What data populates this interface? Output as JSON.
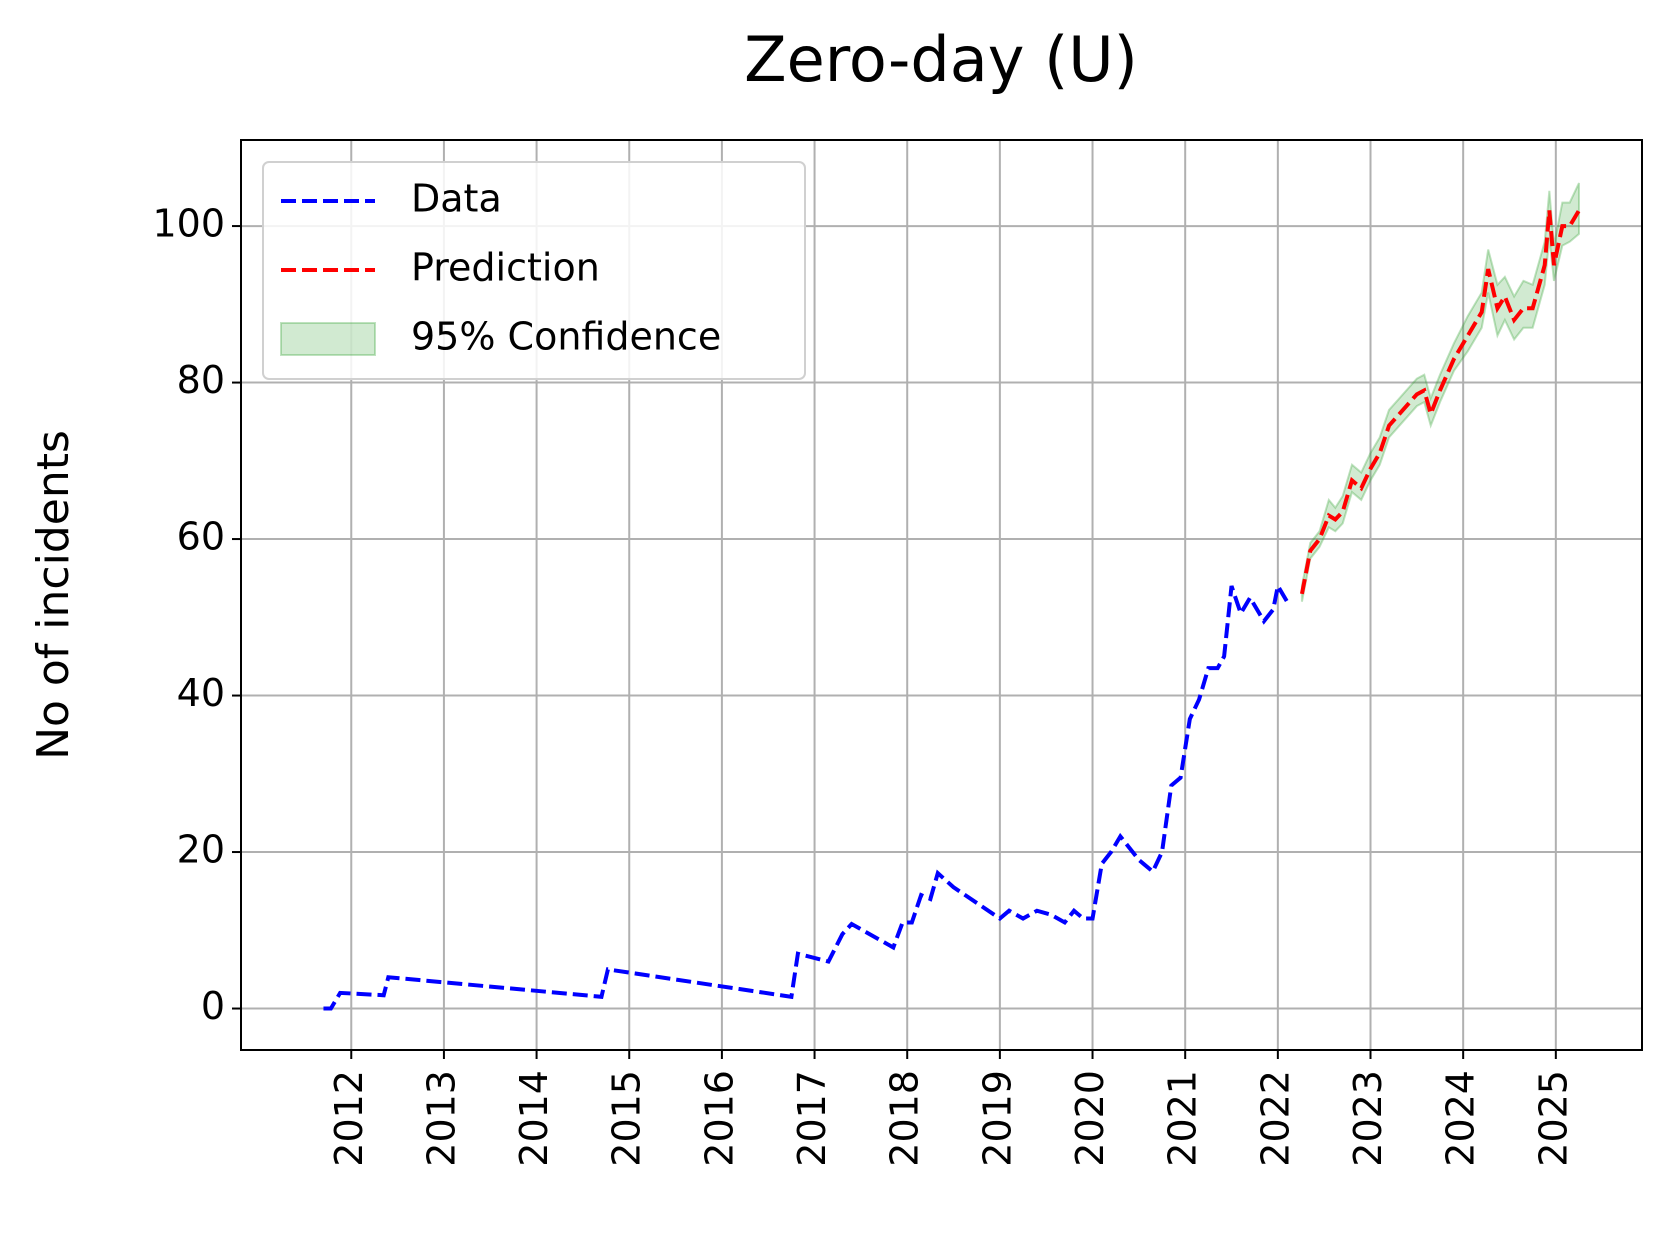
{
  "chart_data": {
    "type": "line",
    "title": "Zero-day (U)",
    "y_label": "No of incidents",
    "xlim": [
      2010.81,
      2025.93
    ],
    "ylim": [
      -5.3,
      111
    ],
    "xticks": [
      2012,
      2013,
      2014,
      2015,
      2016,
      2017,
      2018,
      2019,
      2020,
      2021,
      2022,
      2023,
      2024,
      2025
    ],
    "yticks": [
      0,
      20,
      40,
      60,
      80,
      100
    ],
    "grid": true,
    "legend": "upper left",
    "series": [
      {
        "name": "Data",
        "color": "#0000ff",
        "x": [
          2011.7,
          2011.78,
          2011.88,
          2012.35,
          2012.4,
          2014.7,
          2014.77,
          2016.75,
          2016.82,
          2017.15,
          2017.3,
          2017.4,
          2017.85,
          2017.95,
          2018.05,
          2018.15,
          2018.25,
          2018.33,
          2018.5,
          2019.0,
          2019.1,
          2019.25,
          2019.4,
          2019.55,
          2019.7,
          2019.8,
          2019.9,
          2020.0,
          2020.1,
          2020.2,
          2020.3,
          2020.5,
          2020.65,
          2020.75,
          2020.85,
          2020.95,
          2021.05,
          2021.15,
          2021.25,
          2021.35,
          2021.42,
          2021.5,
          2021.6,
          2021.7,
          2021.8,
          2021.85,
          2021.95,
          2022.0,
          2022.1
        ],
        "values": [
          0,
          0,
          2,
          1.7,
          4,
          1.5,
          5,
          1.5,
          7,
          6,
          9.5,
          10.8,
          7.8,
          11,
          11,
          14.5,
          14,
          17.3,
          15.5,
          11.5,
          12.5,
          11.5,
          12.5,
          12,
          11,
          12.5,
          11.5,
          11.5,
          18.5,
          20,
          22,
          19,
          17.5,
          20,
          28.5,
          29.5,
          37,
          39.5,
          43.5,
          43.5,
          45,
          54,
          50.5,
          52.5,
          50.5,
          49.5,
          51,
          54,
          52
        ]
      },
      {
        "name": "Prediction",
        "color": "#ff0000",
        "x": [
          2022.26,
          2022.35,
          2022.45,
          2022.55,
          2022.62,
          2022.7,
          2022.8,
          2022.9,
          2023.0,
          2023.1,
          2023.2,
          2023.35,
          2023.5,
          2023.58,
          2023.65,
          2023.75,
          2023.9,
          2024.05,
          2024.2,
          2024.27,
          2024.37,
          2024.45,
          2024.55,
          2024.65,
          2024.75,
          2024.88,
          2024.93,
          2024.98,
          2025.07,
          2025.15,
          2025.25
        ],
        "values": [
          53,
          58.5,
          60,
          63,
          62.5,
          63.5,
          67.5,
          66.5,
          69,
          71,
          74.5,
          76.5,
          78.5,
          79,
          76,
          79,
          83,
          86,
          89,
          94.5,
          89.5,
          91,
          88,
          89.5,
          89.5,
          95,
          102,
          95,
          100,
          100,
          102
        ]
      },
      {
        "name": "95% Confidence",
        "color": "#2ca02c",
        "x": [
          2022.26,
          2022.35,
          2022.45,
          2022.55,
          2022.62,
          2022.7,
          2022.8,
          2022.9,
          2023.0,
          2023.1,
          2023.2,
          2023.35,
          2023.5,
          2023.58,
          2023.65,
          2023.75,
          2023.9,
          2024.05,
          2024.2,
          2024.27,
          2024.37,
          2024.45,
          2024.55,
          2024.65,
          2024.75,
          2024.88,
          2024.93,
          2024.98,
          2025.07,
          2025.15,
          2025.25
        ],
        "lower": [
          52,
          57.5,
          59,
          61.5,
          61,
          62,
          66,
          65,
          67.5,
          69.5,
          73,
          75,
          77,
          77.5,
          74.5,
          77.5,
          81.5,
          84,
          87,
          91.5,
          86,
          88,
          85.5,
          87,
          87,
          92.5,
          98.5,
          93,
          97.5,
          98,
          99
        ],
        "upper": [
          54,
          59.5,
          61,
          65,
          64,
          65.5,
          69.5,
          68.5,
          71,
          73,
          76.5,
          78.5,
          80.5,
          81,
          78,
          81,
          85,
          88.5,
          91.5,
          97,
          92.5,
          93.5,
          91,
          93,
          92.5,
          98,
          104.5,
          97.5,
          103,
          103,
          105.5
        ]
      }
    ]
  }
}
